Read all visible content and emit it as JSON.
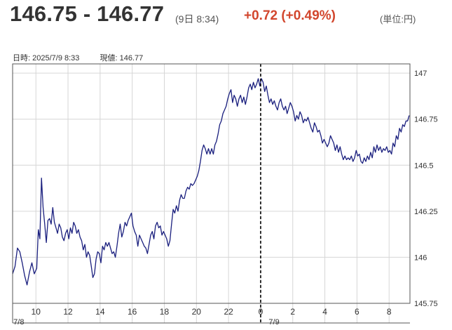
{
  "header": {
    "price_range": "146.75 - 146.77",
    "timestamp": "(9日 8:34)",
    "change": "+0.72 (+0.49%)",
    "unit": "(単位:円)"
  },
  "info": {
    "datetime": "日時: 2025/7/9  8:33",
    "current_value": "現値: 146.77"
  },
  "chart_data": {
    "type": "line",
    "title": "",
    "xlabel": "",
    "ylabel": "",
    "ylim": [
      145.75,
      147.05
    ],
    "y_ticks": [
      "147",
      "146.75",
      "146.5",
      "146.25",
      "146",
      "145.75"
    ],
    "y_tick_values": [
      147,
      146.75,
      146.5,
      146.25,
      146,
      145.75
    ],
    "x_ticks": [
      "10",
      "12",
      "14",
      "16",
      "18",
      "20",
      "22",
      "0",
      "2",
      "4",
      "6",
      "8"
    ],
    "x_tick_hours": [
      10,
      12,
      14,
      16,
      18,
      20,
      22,
      24,
      26,
      28,
      30,
      32
    ],
    "date_labels": [
      "7/8",
      "7/9"
    ],
    "date_label_hours": [
      8.6,
      24.5
    ],
    "x_range_hours": [
      8.55,
      33.3
    ],
    "crosshair_hour": 24,
    "line_color": "#1a1f7e",
    "series": [
      {
        "points": [
          [
            8.55,
            145.91
          ],
          [
            8.7,
            145.95
          ],
          [
            8.85,
            146.05
          ],
          [
            9.0,
            146.03
          ],
          [
            9.15,
            145.97
          ],
          [
            9.3,
            145.9
          ],
          [
            9.45,
            145.85
          ],
          [
            9.6,
            145.92
          ],
          [
            9.75,
            145.97
          ],
          [
            9.9,
            145.91
          ],
          [
            10.05,
            145.94
          ],
          [
            10.15,
            146.15
          ],
          [
            10.25,
            146.1
          ],
          [
            10.35,
            146.43
          ],
          [
            10.45,
            146.27
          ],
          [
            10.55,
            146.18
          ],
          [
            10.65,
            146.08
          ],
          [
            10.75,
            146.2
          ],
          [
            10.85,
            146.21
          ],
          [
            10.95,
            146.18
          ],
          [
            11.05,
            146.27
          ],
          [
            11.15,
            146.19
          ],
          [
            11.25,
            146.16
          ],
          [
            11.35,
            146.13
          ],
          [
            11.45,
            146.18
          ],
          [
            11.55,
            146.16
          ],
          [
            11.65,
            146.11
          ],
          [
            11.75,
            146.09
          ],
          [
            11.85,
            146.13
          ],
          [
            11.95,
            146.15
          ],
          [
            12.05,
            146.1
          ],
          [
            12.15,
            146.16
          ],
          [
            12.25,
            146.13
          ],
          [
            12.35,
            146.19
          ],
          [
            12.45,
            146.17
          ],
          [
            12.55,
            146.13
          ],
          [
            12.65,
            146.15
          ],
          [
            12.75,
            146.11
          ],
          [
            12.85,
            146.09
          ],
          [
            12.95,
            146.04
          ],
          [
            13.05,
            146.07
          ],
          [
            13.15,
            146.0
          ],
          [
            13.25,
            146.03
          ],
          [
            13.35,
            146.01
          ],
          [
            13.45,
            145.95
          ],
          [
            13.55,
            145.89
          ],
          [
            13.65,
            145.91
          ],
          [
            13.75,
            145.99
          ],
          [
            13.85,
            146.03
          ],
          [
            13.95,
            146.02
          ],
          [
            14.05,
            145.97
          ],
          [
            14.15,
            146.06
          ],
          [
            14.25,
            146.04
          ],
          [
            14.35,
            146.08
          ],
          [
            14.45,
            146.06
          ],
          [
            14.55,
            146.08
          ],
          [
            14.65,
            146.05
          ],
          [
            14.75,
            146.02
          ],
          [
            14.85,
            146.03
          ],
          [
            14.95,
            146.0
          ],
          [
            15.05,
            146.06
          ],
          [
            15.15,
            146.13
          ],
          [
            15.25,
            146.18
          ],
          [
            15.35,
            146.11
          ],
          [
            15.45,
            146.14
          ],
          [
            15.55,
            146.19
          ],
          [
            15.65,
            146.17
          ],
          [
            15.75,
            146.2
          ],
          [
            15.85,
            146.22
          ],
          [
            15.95,
            146.24
          ],
          [
            16.05,
            146.17
          ],
          [
            16.15,
            146.14
          ],
          [
            16.25,
            146.12
          ],
          [
            16.35,
            146.06
          ],
          [
            16.45,
            146.12
          ],
          [
            16.55,
            146.1
          ],
          [
            16.65,
            146.08
          ],
          [
            16.75,
            146.06
          ],
          [
            16.85,
            146.05
          ],
          [
            16.95,
            146.02
          ],
          [
            17.05,
            146.07
          ],
          [
            17.15,
            146.12
          ],
          [
            17.25,
            146.14
          ],
          [
            17.35,
            146.1
          ],
          [
            17.45,
            146.17
          ],
          [
            17.55,
            146.19
          ],
          [
            17.65,
            146.16
          ],
          [
            17.75,
            146.17
          ],
          [
            17.85,
            146.12
          ],
          [
            17.95,
            146.14
          ],
          [
            18.05,
            146.12
          ],
          [
            18.15,
            146.1
          ],
          [
            18.25,
            146.06
          ],
          [
            18.35,
            146.09
          ],
          [
            18.45,
            146.18
          ],
          [
            18.55,
            146.26
          ],
          [
            18.65,
            146.24
          ],
          [
            18.75,
            146.28
          ],
          [
            18.85,
            146.25
          ],
          [
            18.95,
            146.31
          ],
          [
            19.05,
            146.34
          ],
          [
            19.15,
            146.32
          ],
          [
            19.25,
            146.32
          ],
          [
            19.35,
            146.36
          ],
          [
            19.45,
            146.38
          ],
          [
            19.55,
            146.37
          ],
          [
            19.65,
            146.4
          ],
          [
            19.75,
            146.39
          ],
          [
            19.85,
            146.4
          ],
          [
            19.95,
            146.42
          ],
          [
            20.05,
            146.44
          ],
          [
            20.15,
            146.47
          ],
          [
            20.25,
            146.52
          ],
          [
            20.35,
            146.58
          ],
          [
            20.45,
            146.61
          ],
          [
            20.55,
            146.59
          ],
          [
            20.65,
            146.56
          ],
          [
            20.75,
            146.59
          ],
          [
            20.85,
            146.56
          ],
          [
            20.95,
            146.59
          ],
          [
            21.05,
            146.56
          ],
          [
            21.15,
            146.61
          ],
          [
            21.25,
            146.63
          ],
          [
            21.35,
            146.67
          ],
          [
            21.45,
            146.72
          ],
          [
            21.55,
            146.74
          ],
          [
            21.65,
            146.78
          ],
          [
            21.75,
            146.8
          ],
          [
            21.85,
            146.82
          ],
          [
            21.95,
            146.86
          ],
          [
            22.05,
            146.89
          ],
          [
            22.15,
            146.91
          ],
          [
            22.25,
            146.84
          ],
          [
            22.35,
            146.88
          ],
          [
            22.45,
            146.86
          ],
          [
            22.55,
            146.82
          ],
          [
            22.65,
            146.86
          ],
          [
            22.75,
            146.88
          ],
          [
            22.85,
            146.84
          ],
          [
            22.95,
            146.87
          ],
          [
            23.05,
            146.83
          ],
          [
            23.15,
            146.87
          ],
          [
            23.25,
            146.92
          ],
          [
            23.35,
            146.94
          ],
          [
            23.45,
            146.91
          ],
          [
            23.55,
            146.95
          ],
          [
            23.65,
            146.92
          ],
          [
            23.75,
            146.94
          ],
          [
            23.85,
            146.97
          ],
          [
            23.95,
            146.93
          ],
          [
            24.05,
            146.97
          ],
          [
            24.15,
            146.95
          ],
          [
            24.25,
            146.9
          ],
          [
            24.35,
            146.93
          ],
          [
            24.45,
            146.88
          ],
          [
            24.55,
            146.84
          ],
          [
            24.65,
            146.86
          ],
          [
            24.75,
            146.83
          ],
          [
            24.85,
            146.85
          ],
          [
            24.95,
            146.82
          ],
          [
            25.05,
            146.8
          ],
          [
            25.15,
            146.84
          ],
          [
            25.25,
            146.86
          ],
          [
            25.35,
            146.82
          ],
          [
            25.45,
            146.8
          ],
          [
            25.55,
            146.82
          ],
          [
            25.65,
            146.78
          ],
          [
            25.75,
            146.81
          ],
          [
            25.85,
            146.84
          ],
          [
            25.95,
            146.82
          ],
          [
            26.05,
            146.79
          ],
          [
            26.15,
            146.74
          ],
          [
            26.25,
            146.77
          ],
          [
            26.35,
            146.75
          ],
          [
            26.45,
            146.79
          ],
          [
            26.55,
            146.77
          ],
          [
            26.65,
            146.73
          ],
          [
            26.75,
            146.75
          ],
          [
            26.85,
            146.74
          ],
          [
            26.95,
            146.76
          ],
          [
            27.05,
            146.73
          ],
          [
            27.15,
            146.7
          ],
          [
            27.25,
            146.68
          ],
          [
            27.35,
            146.73
          ],
          [
            27.45,
            146.71
          ],
          [
            27.55,
            146.68
          ],
          [
            27.65,
            146.69
          ],
          [
            27.75,
            146.66
          ],
          [
            27.85,
            146.62
          ],
          [
            27.95,
            146.64
          ],
          [
            28.05,
            146.62
          ],
          [
            28.15,
            146.6
          ],
          [
            28.25,
            146.62
          ],
          [
            28.35,
            146.66
          ],
          [
            28.45,
            146.64
          ],
          [
            28.55,
            146.62
          ],
          [
            28.65,
            146.58
          ],
          [
            28.75,
            146.61
          ],
          [
            28.85,
            146.57
          ],
          [
            28.95,
            146.6
          ],
          [
            29.05,
            146.56
          ],
          [
            29.15,
            146.53
          ],
          [
            29.25,
            146.55
          ],
          [
            29.35,
            146.53
          ],
          [
            29.45,
            146.54
          ],
          [
            29.55,
            146.53
          ],
          [
            29.65,
            146.55
          ],
          [
            29.75,
            146.52
          ],
          [
            29.85,
            146.54
          ],
          [
            29.95,
            146.58
          ],
          [
            30.05,
            146.55
          ],
          [
            30.15,
            146.56
          ],
          [
            30.25,
            146.52
          ],
          [
            30.35,
            146.51
          ],
          [
            30.45,
            146.54
          ],
          [
            30.55,
            146.52
          ],
          [
            30.65,
            146.55
          ],
          [
            30.75,
            146.53
          ],
          [
            30.85,
            146.57
          ],
          [
            30.95,
            146.54
          ],
          [
            31.05,
            146.6
          ],
          [
            31.15,
            146.57
          ],
          [
            31.25,
            146.61
          ],
          [
            31.35,
            146.58
          ],
          [
            31.45,
            146.6
          ],
          [
            31.55,
            146.57
          ],
          [
            31.65,
            146.59
          ],
          [
            31.75,
            146.58
          ],
          [
            31.85,
            146.6
          ],
          [
            31.95,
            146.57
          ],
          [
            32.05,
            146.58
          ],
          [
            32.15,
            146.56
          ],
          [
            32.25,
            146.62
          ],
          [
            32.35,
            146.6
          ],
          [
            32.45,
            146.66
          ],
          [
            32.55,
            146.64
          ],
          [
            32.65,
            146.7
          ],
          [
            32.75,
            146.68
          ],
          [
            32.85,
            146.72
          ],
          [
            32.95,
            146.71
          ],
          [
            33.05,
            146.74
          ],
          [
            33.15,
            146.74
          ],
          [
            33.25,
            146.77
          ]
        ]
      }
    ]
  }
}
